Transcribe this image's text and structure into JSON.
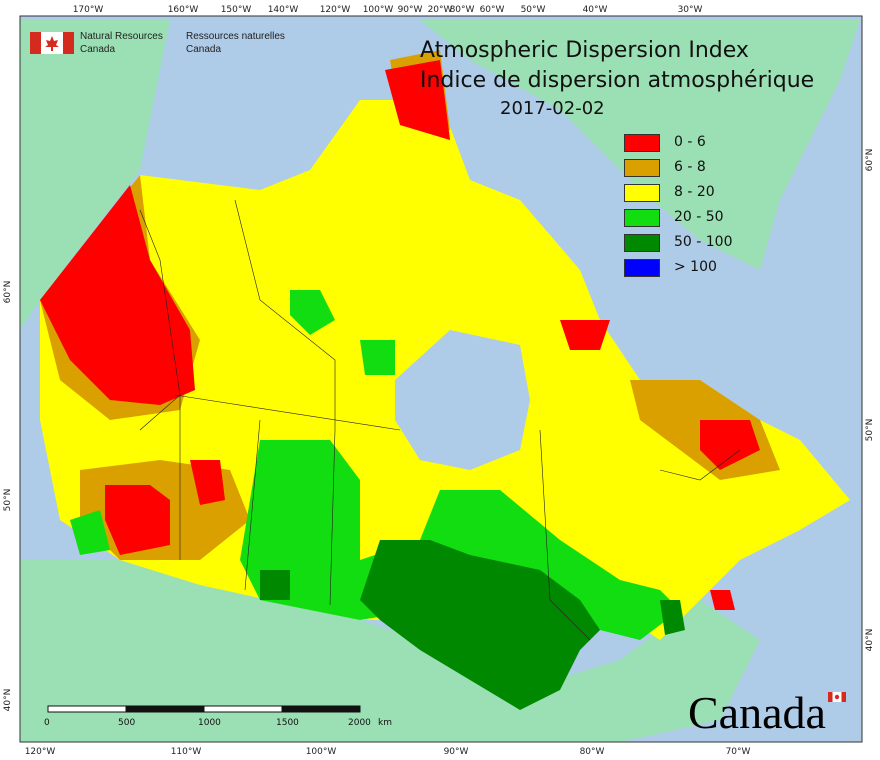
{
  "map": {
    "title_en": "Atmospheric Dispersion Index",
    "title_fr": "Indice de dispersion atmosphérique",
    "date": "2017-02-02",
    "agency_en_line1": "Natural Resources",
    "agency_en_line2": "Canada",
    "agency_fr_line1": "Ressources naturelles",
    "agency_fr_line2": "Canada",
    "wordmark": "Canada",
    "colors": {
      "ocean": "#aecbe8",
      "land_foreign": "#9be0b4",
      "very_poor": "#ff0000",
      "poor": "#d9a000",
      "fair": "#ffff00",
      "good": "#11dd11",
      "very_good": "#008800",
      "excellent": "#0000ff"
    },
    "legend": [
      {
        "label": "0 - 6",
        "color": "#ff0000"
      },
      {
        "label": "6 - 8",
        "color": "#d9a000"
      },
      {
        "label": "8 - 20",
        "color": "#ffff00"
      },
      {
        "label": "20 - 50",
        "color": "#11dd11"
      },
      {
        "label": "50 - 100",
        "color": "#008800"
      },
      {
        "label": "> 100",
        "color": "#0000ff"
      }
    ],
    "top_ticks": [
      "170°W",
      "160°W",
      "150°W",
      "140°W",
      "120°W",
      "100°W",
      "90°W",
      "80°W",
      "60°W",
      "50°W",
      "40°W",
      "30°W",
      "20°W"
    ],
    "bottom_ticks": [
      "120°W",
      "110°W",
      "100°W",
      "90°W",
      "80°W",
      "70°W"
    ],
    "left_ticks": [
      "60°N",
      "50°N",
      "40°N"
    ],
    "right_ticks": [
      "60°N",
      "50°N",
      "40°N"
    ],
    "scale_labels": [
      "0",
      "500",
      "1000",
      "1500",
      "2000",
      "km"
    ]
  }
}
